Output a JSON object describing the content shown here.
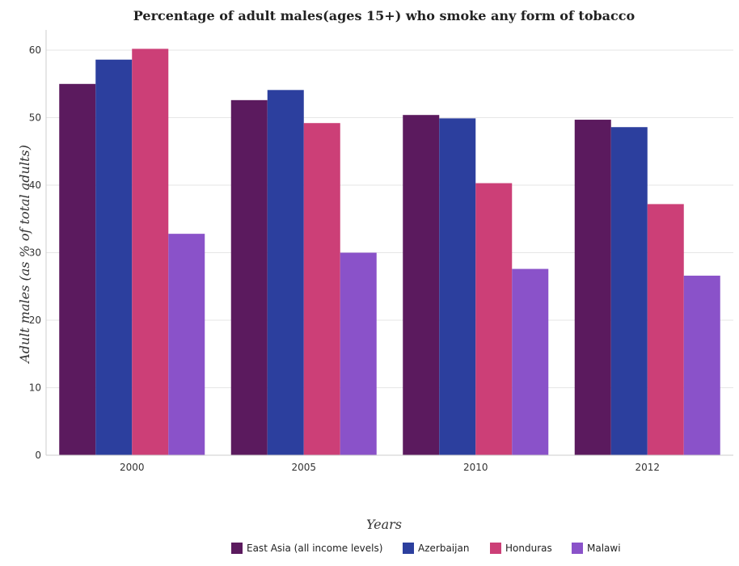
{
  "chart_data": {
    "type": "bar",
    "title": "Percentage of adult males(ages 15+) who smoke any form of tobacco",
    "xlabel": "Years",
    "ylabel": "Adult males (as % of total adults)",
    "categories": [
      "2000",
      "2005",
      "2010",
      "2012"
    ],
    "ylim": [
      0,
      63
    ],
    "yticks": [
      0,
      10,
      20,
      30,
      40,
      50,
      60
    ],
    "grid": true,
    "legend_position": "bottom-right",
    "series": [
      {
        "name": "East Asia (all income levels)",
        "color": "#5b1a5e",
        "values": [
          55.0,
          52.6,
          50.4,
          49.7
        ]
      },
      {
        "name": "Azerbaijan",
        "color": "#2c3f9e",
        "values": [
          58.6,
          54.1,
          49.9,
          48.6
        ]
      },
      {
        "name": "Honduras",
        "color": "#cc3f77",
        "values": [
          60.2,
          49.2,
          40.3,
          37.2
        ]
      },
      {
        "name": "Malawi",
        "color": "#8a52c9",
        "values": [
          32.8,
          30.0,
          27.6,
          26.6
        ]
      }
    ]
  }
}
